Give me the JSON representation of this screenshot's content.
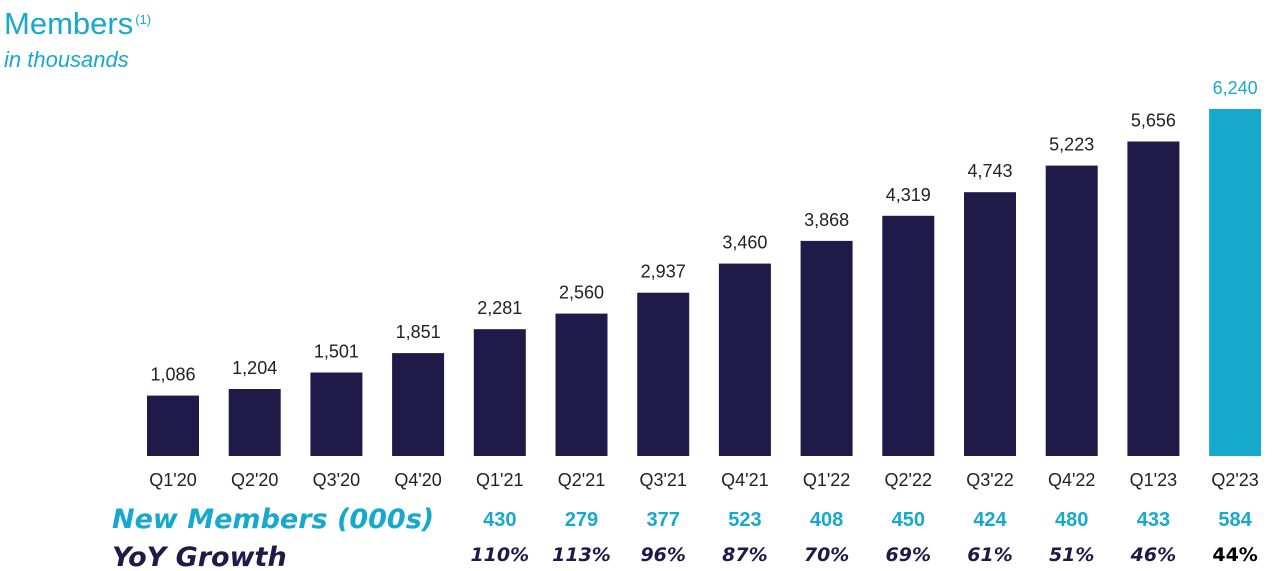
{
  "title": "Members",
  "title_superscript": "(1)",
  "subtitle": "in thousands",
  "colors": {
    "bar": "#1F1A47",
    "highlight": "#17A9CD",
    "accent_text": "#17A9CD",
    "dark_text": "#1F1A47",
    "label_text": "#222222"
  },
  "chart_data": {
    "type": "bar",
    "categories": [
      "Q1'20",
      "Q2'20",
      "Q3'20",
      "Q4'20",
      "Q1'21",
      "Q2'21",
      "Q3'21",
      "Q4'21",
      "Q1'22",
      "Q2'22",
      "Q3'22",
      "Q4'22",
      "Q1'23",
      "Q2'23"
    ],
    "values": [
      1086,
      1204,
      1501,
      1851,
      2281,
      2560,
      2937,
      3460,
      3868,
      4319,
      4743,
      5223,
      5656,
      6240
    ],
    "value_labels": [
      "1,086",
      "1,204",
      "1,501",
      "1,851",
      "2,281",
      "2,560",
      "2,937",
      "3,460",
      "3,868",
      "4,319",
      "4,743",
      "5,223",
      "5,656",
      "6,240"
    ],
    "highlight_category": "Q2'23",
    "ylim": [
      0,
      6240
    ],
    "grid": false,
    "legend": "none"
  },
  "new_members": {
    "label": "New Members (000s)",
    "values": [
      "",
      "",
      "",
      "",
      "430",
      "279",
      "377",
      "523",
      "408",
      "450",
      "424",
      "480",
      "433",
      "584"
    ]
  },
  "yoy_growth": {
    "label": "YoY Growth",
    "values": [
      "",
      "",
      "",
      "",
      "110%",
      "113%",
      "96%",
      "87%",
      "70%",
      "69%",
      "61%",
      "51%",
      "46%",
      "44%"
    ]
  }
}
